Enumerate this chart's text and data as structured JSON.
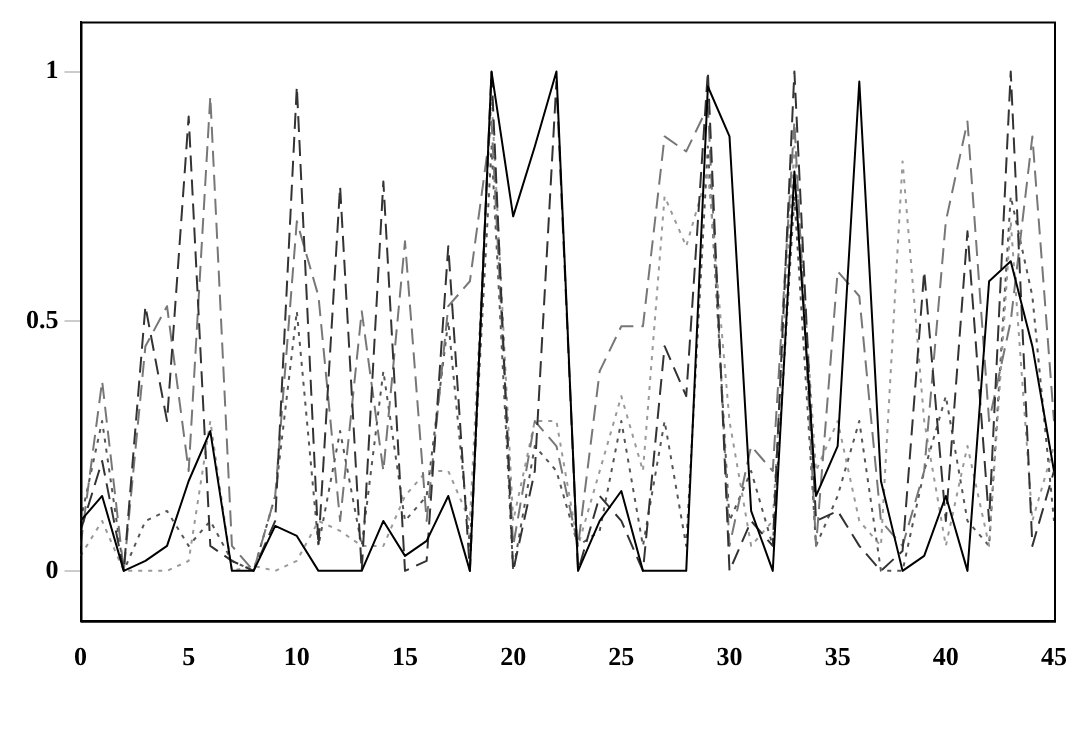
{
  "chart_data": {
    "type": "line",
    "x": [
      0,
      1,
      2,
      3,
      4,
      5,
      6,
      7,
      8,
      9,
      10,
      11,
      12,
      13,
      14,
      15,
      16,
      17,
      18,
      19,
      20,
      21,
      22,
      23,
      24,
      25,
      26,
      27,
      28,
      29,
      30,
      31,
      32,
      33,
      34,
      35,
      36,
      37,
      38,
      39,
      40,
      41,
      42,
      43,
      44,
      45
    ],
    "xlim": [
      0,
      45
    ],
    "xticks": [
      0,
      5,
      10,
      15,
      20,
      25,
      30,
      35,
      40,
      45
    ],
    "ylim": [
      -0.1,
      1.1
    ],
    "yticks": [
      0,
      0.5,
      1
    ],
    "grid": false,
    "legend": false,
    "marker": "none",
    "series": [
      {
        "color": "#000000",
        "line_style": "solid",
        "values": [
          0.1,
          0.15,
          0,
          0.02,
          0.05,
          0.18,
          0.28,
          0,
          0,
          0.09,
          0.07,
          0,
          0,
          0,
          0.1,
          0.03,
          0.06,
          0.15,
          0,
          1,
          0.71,
          0.85,
          1,
          0,
          0.1,
          0.16,
          0,
          0,
          0,
          0.97,
          0.87,
          0.12,
          0,
          0.8,
          0.15,
          0.25,
          0.98,
          0.18,
          0,
          0.03,
          0.15,
          0,
          0.58,
          0.62,
          0.45,
          0.2
        ]
      },
      {
        "color": "#333333",
        "line_style": "dashed",
        "values": [
          0.08,
          0.22,
          0,
          0.53,
          0.3,
          0.91,
          0.05,
          0.02,
          0,
          0.1,
          0.97,
          0.05,
          0.77,
          0,
          0.78,
          0,
          0.02,
          0.65,
          0,
          1,
          0,
          0.2,
          0.98,
          0,
          0.15,
          0.1,
          0,
          0.45,
          0.35,
          1,
          0,
          0.1,
          0.05,
          1,
          0.1,
          0.12,
          0.05,
          0,
          0.04,
          0.6,
          0.1,
          0.68,
          0.1,
          1,
          0.05,
          0.2
        ]
      },
      {
        "color": "#777777",
        "line_style": "dashed",
        "values": [
          0.05,
          0.38,
          0,
          0.45,
          0.53,
          0.2,
          0.95,
          0.05,
          0,
          0.15,
          0.7,
          0.55,
          0.1,
          0.52,
          0.2,
          0.66,
          0.1,
          0.53,
          0.58,
          0.9,
          0.05,
          0.3,
          0.25,
          0.05,
          0.4,
          0.49,
          0.49,
          0.87,
          0.84,
          0.93,
          0.05,
          0.25,
          0.2,
          0.9,
          0.05,
          0.6,
          0.55,
          0.1,
          0.05,
          0.2,
          0.7,
          0.9,
          0.3,
          0.5,
          0.87,
          0.3
        ]
      },
      {
        "color": "#999999",
        "line_style": "dotted",
        "values": [
          0.03,
          0.1,
          0,
          0,
          0,
          0.02,
          0.3,
          0,
          0.01,
          0,
          0.02,
          0.1,
          0.08,
          0.05,
          0.05,
          0.15,
          0.2,
          0.2,
          0.1,
          0.95,
          0.1,
          0.3,
          0.3,
          0.05,
          0.2,
          0.35,
          0.2,
          0.75,
          0.65,
          0.8,
          0.3,
          0.05,
          0.1,
          0.85,
          0.2,
          0.3,
          0.1,
          0.05,
          0.82,
          0.3,
          0.05,
          0.25,
          0.05,
          0.7,
          0.1,
          0.25
        ]
      },
      {
        "color": "#555555",
        "line_style": "dotted",
        "values": [
          0.1,
          0.3,
          0,
          0.1,
          0.12,
          0.05,
          0.1,
          0.02,
          0,
          0.15,
          0.52,
          0.05,
          0.28,
          0.05,
          0.4,
          0.1,
          0.15,
          0.5,
          0.05,
          0.85,
          0,
          0.25,
          0.2,
          0.05,
          0.08,
          0.3,
          0.05,
          0.3,
          0.05,
          0.85,
          0.1,
          0.2,
          0.05,
          0.75,
          0.05,
          0.15,
          0.3,
          0,
          0,
          0.2,
          0.35,
          0.1,
          0.05,
          0.75,
          0.55,
          0.1
        ]
      }
    ]
  }
}
